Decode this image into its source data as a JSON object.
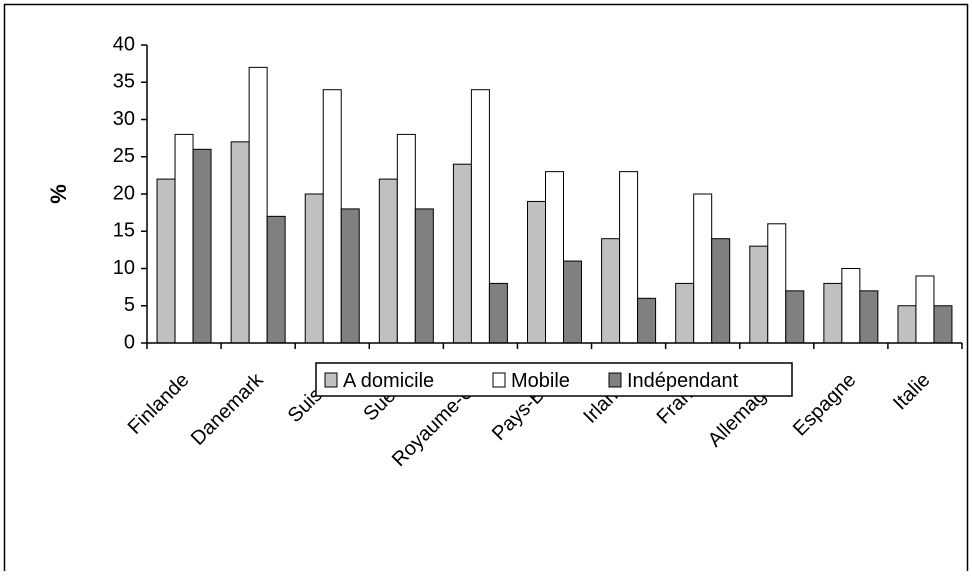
{
  "chart_data": {
    "type": "bar",
    "title": "",
    "xlabel": "",
    "ylabel": "%",
    "ylim": [
      0,
      40
    ],
    "yticks": [
      "0",
      "5",
      "10",
      "15",
      "20",
      "25",
      "30",
      "35",
      "40"
    ],
    "ytick_values": [
      0,
      5,
      10,
      15,
      20,
      25,
      30,
      35,
      40
    ],
    "grid": false,
    "legend_position": "bottom",
    "categories": [
      "Finlande",
      "Danemark",
      "Suisse",
      "Suède",
      "Royaume-Uni",
      "Pays-Bas",
      "Irlande",
      "France",
      "Allemagne",
      "Espagne",
      "Italie"
    ],
    "series": [
      {
        "name": "A domicile",
        "color": "#c0c0c0",
        "values": [
          22,
          27,
          20,
          22,
          24,
          19,
          14,
          8,
          13,
          8,
          5
        ]
      },
      {
        "name": "Mobile",
        "color": "#ffffff",
        "values": [
          28,
          37,
          34,
          28,
          34,
          23,
          23,
          20,
          16,
          10,
          9
        ]
      },
      {
        "name": "Indépendant",
        "color": "#808080",
        "values": [
          26,
          17,
          18,
          18,
          8,
          11,
          6,
          14,
          7,
          7,
          5
        ]
      }
    ]
  }
}
